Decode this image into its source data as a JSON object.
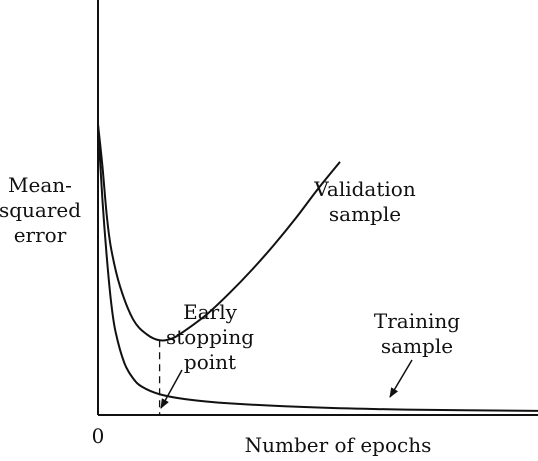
{
  "chart_data": {
    "type": "line",
    "title": "",
    "xlabel": "Number of epochs",
    "ylabel": [
      "Mean-",
      "squared",
      "error"
    ],
    "x_tick_labels": [
      "0"
    ],
    "grid": false,
    "xlim": [
      0,
      100
    ],
    "ylim": [
      0,
      100
    ],
    "series": [
      {
        "name": "Validation sample",
        "label_lines": [
          "Validation",
          "sample"
        ],
        "color": "#111111",
        "x": [
          0,
          1,
          2,
          3,
          5,
          8,
          11,
          14,
          17,
          20,
          25,
          30,
          35,
          40,
          45,
          50,
          55
        ],
        "y": [
          70,
          60,
          48,
          40,
          31,
          23,
          19.5,
          18,
          18.5,
          20.5,
          24.5,
          29.5,
          35,
          41,
          47.5,
          54.5,
          61
        ]
      },
      {
        "name": "Training sample",
        "label_lines": [
          "Training",
          "sample"
        ],
        "color": "#111111",
        "x": [
          0,
          1,
          2,
          3,
          4,
          6,
          8,
          10,
          14,
          20,
          30,
          50,
          70,
          100
        ],
        "y": [
          70,
          52,
          38,
          27,
          20,
          12.5,
          8.8,
          6.8,
          5,
          3.8,
          2.8,
          1.8,
          1.3,
          1
        ]
      }
    ],
    "annotations": [
      {
        "text_lines": [
          "Early",
          "stopping",
          "point"
        ],
        "x": 14,
        "marker": "dashed-vertical-line-with-arrow"
      }
    ]
  }
}
